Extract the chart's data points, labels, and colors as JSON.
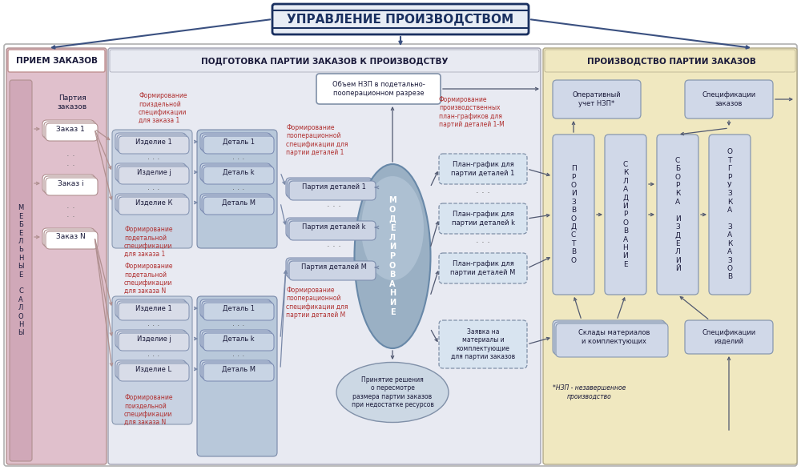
{
  "title": "УПРАВЛЕНИЕ ПРОИЗВОДСТВОМ",
  "section1_title": "ПРИЕМ ЗАКАЗОВ",
  "section2_title": "ПОДГОТОВКА ПАРТИИ ЗАКАЗОВ К ПРОИЗВОДСТВУ",
  "section3_title": "ПРОИЗВОДСТВО ПАРТИИ ЗАКАЗОВ",
  "outer_bg": "#f5f5f5",
  "section1_bg": "#d8b8c4",
  "section2_bg": "#e4e8f0",
  "section3_bg": "#f0e8c0",
  "box_blue_light": "#d0d8e8",
  "box_blue_mid": "#b8c8d8",
  "box_gray": "#d4d8e0",
  "dashed_box": "#d0dce8",
  "arrow_dark": "#3a5080",
  "arrow_mid": "#808090",
  "title_blue": "#1a3060",
  "text_dark": "#1a1a3a",
  "red_text": "#b03030"
}
